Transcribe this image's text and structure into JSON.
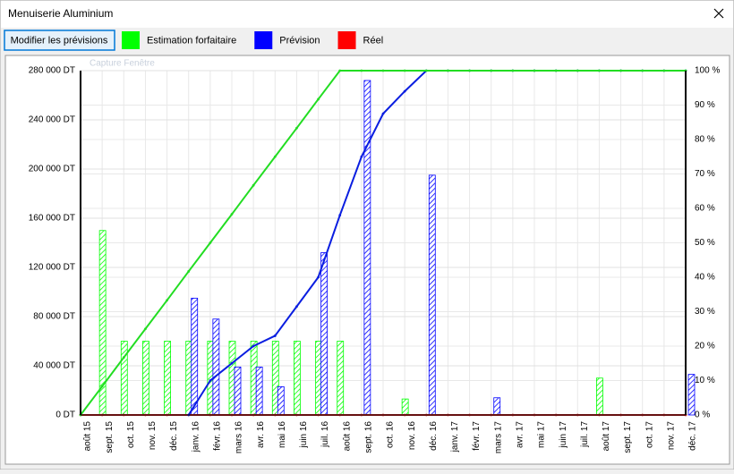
{
  "window": {
    "title": "Menuiserie Aluminium",
    "button": "Modifier les prévisions",
    "overlay_text": "Capture Fenêtre"
  },
  "chart_data": {
    "type": "bar-line",
    "categories": [
      "août 15",
      "sept. 15",
      "oct. 15",
      "nov. 15",
      "déc. 15",
      "janv. 16",
      "févr. 16",
      "mars 16",
      "avr. 16",
      "mai 16",
      "juin 16",
      "juil. 16",
      "août 16",
      "sept. 16",
      "oct. 16",
      "nov. 16",
      "déc. 16",
      "janv. 17",
      "févr. 17",
      "mars 17",
      "avr. 17",
      "mai 17",
      "juin 17",
      "juil. 17",
      "août 17",
      "sept. 17",
      "oct. 17",
      "nov. 17",
      "déc. 17"
    ],
    "ylim": [
      0,
      280000
    ],
    "yticks": [
      {
        "value": 0,
        "label": "0 DT"
      },
      {
        "value": 40000,
        "label": "40 000 DT"
      },
      {
        "value": 80000,
        "label": "80 000 DT"
      },
      {
        "value": 120000,
        "label": "120 000 DT"
      },
      {
        "value": 160000,
        "label": "160 000 DT"
      },
      {
        "value": 200000,
        "label": "200 000 DT"
      },
      {
        "value": 240000,
        "label": "240 000 DT"
      },
      {
        "value": 280000,
        "label": "280 000 DT"
      }
    ],
    "y2lim": [
      0,
      100
    ],
    "y2ticks": [
      {
        "value": 0,
        "label": "0 %"
      },
      {
        "value": 10,
        "label": "10 %"
      },
      {
        "value": 20,
        "label": "20 %"
      },
      {
        "value": 30,
        "label": "30 %"
      },
      {
        "value": 40,
        "label": "40 %"
      },
      {
        "value": 50,
        "label": "50 %"
      },
      {
        "value": 60,
        "label": "60 %"
      },
      {
        "value": 70,
        "label": "70 %"
      },
      {
        "value": 80,
        "label": "80 %"
      },
      {
        "value": 90,
        "label": "90 %"
      },
      {
        "value": 100,
        "label": "100 %"
      }
    ],
    "grid": true,
    "series": [
      {
        "name": "Estimation forfaitaire",
        "color": "#00ff00",
        "line_color": "#22dd22",
        "axis": "y2",
        "values": [
          0,
          8.3,
          16.7,
          25,
          33.3,
          41.7,
          50,
          58.3,
          66.7,
          75,
          83.3,
          91.7,
          100,
          100,
          100,
          100,
          100,
          100,
          100,
          100,
          100,
          100,
          100,
          100,
          100,
          100,
          100,
          100,
          100
        ],
        "bar_values": [
          null,
          150000,
          60000,
          60000,
          60000,
          60000,
          60000,
          60000,
          60000,
          60000,
          60000,
          60000,
          60000,
          null,
          null,
          13000,
          null,
          null,
          null,
          null,
          null,
          null,
          null,
          null,
          30000,
          null,
          null,
          null,
          null
        ]
      },
      {
        "name": "Prévision",
        "color": "#0000ff",
        "line_color": "#0a1ee0",
        "axis": "y2",
        "values": [
          null,
          null,
          null,
          null,
          null,
          0,
          10,
          15,
          20,
          23,
          31.5,
          40,
          58,
          75,
          87.5,
          94,
          100,
          100,
          100,
          100,
          100,
          100,
          100,
          100,
          100,
          100,
          100,
          100,
          100
        ],
        "bar_values": [
          null,
          null,
          null,
          null,
          null,
          95000,
          78000,
          39000,
          39000,
          23000,
          null,
          132000,
          null,
          272000,
          null,
          null,
          195000,
          null,
          null,
          14000,
          null,
          null,
          null,
          null,
          null,
          null,
          null,
          null,
          33000
        ]
      },
      {
        "name": "Réel",
        "color": "#ff0000",
        "line_color": "#cc2222",
        "axis": "y2",
        "values": [
          0,
          0,
          0,
          0,
          0,
          0,
          0,
          0,
          0,
          0,
          0,
          0,
          0,
          0,
          0,
          0,
          0,
          0,
          0,
          0,
          0,
          0,
          0,
          0,
          0,
          0,
          0,
          0,
          0
        ]
      }
    ]
  }
}
